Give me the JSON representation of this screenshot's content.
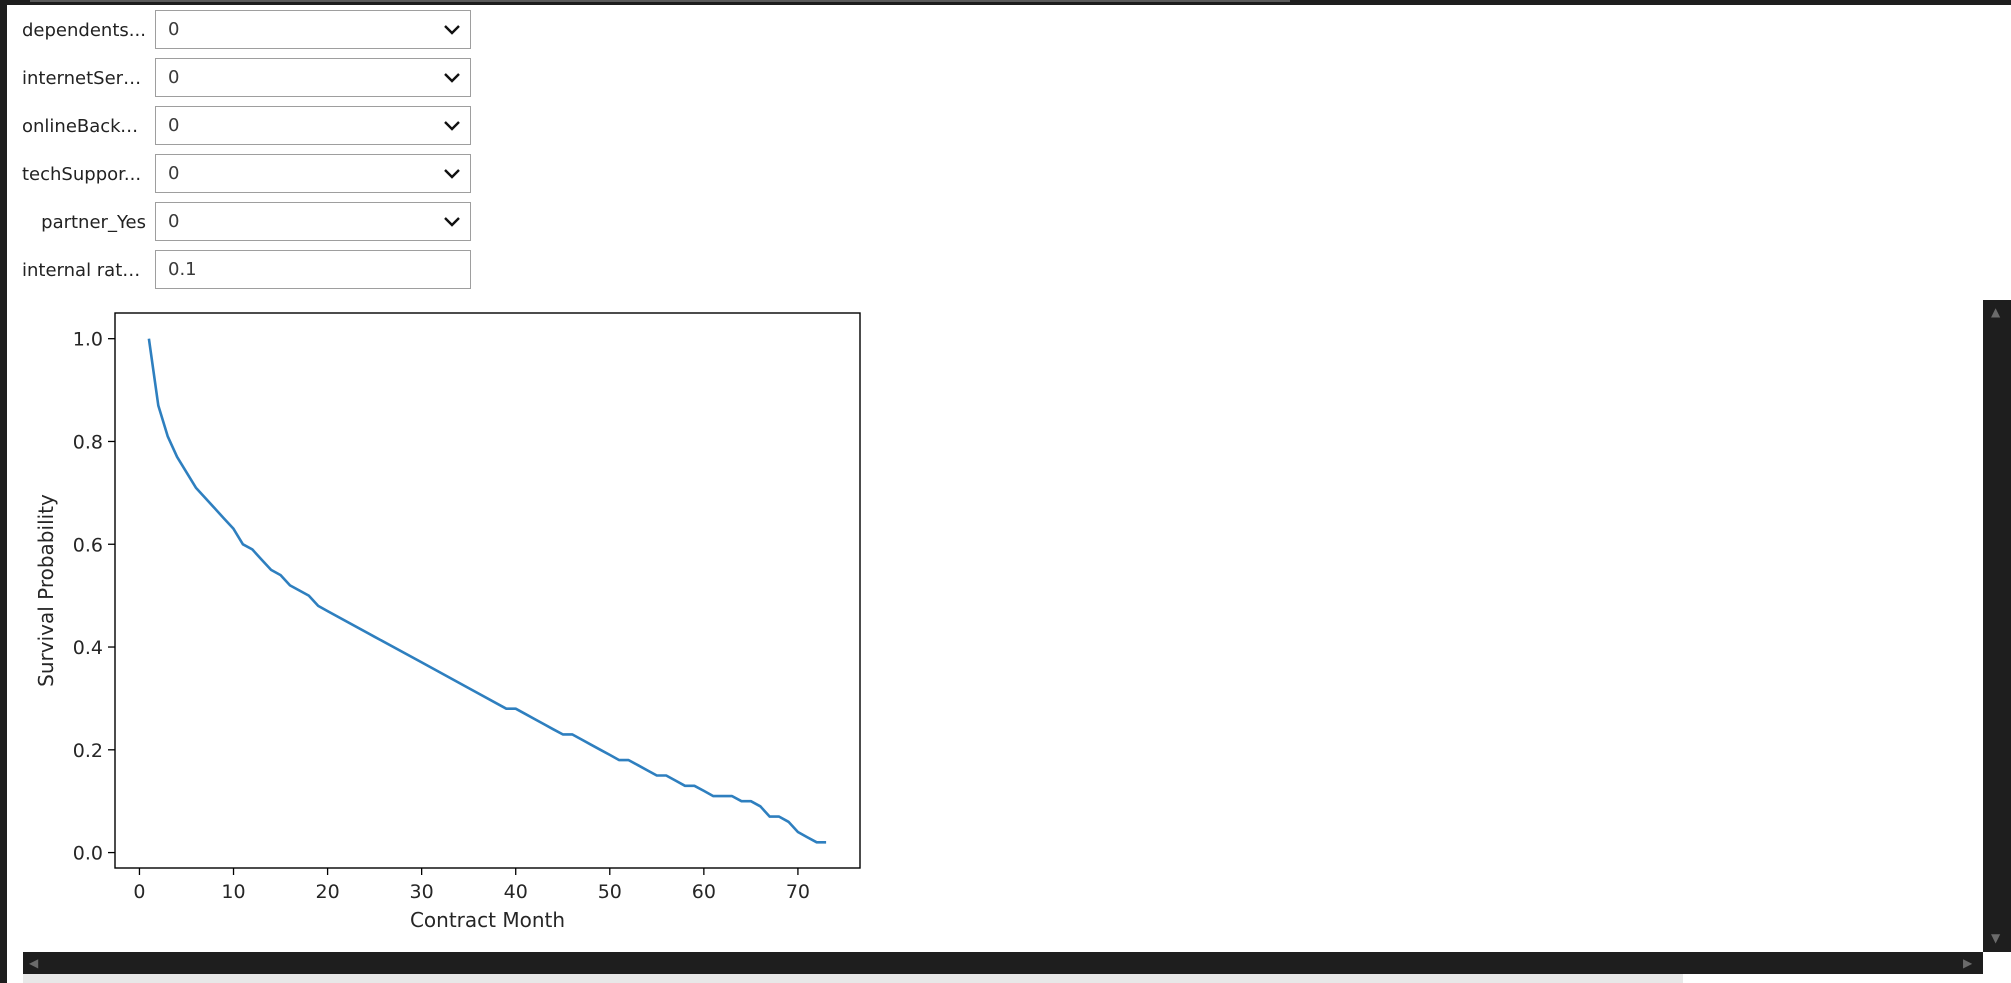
{
  "controls": [
    {
      "label": "dependents...",
      "value": "0",
      "kind": "select"
    },
    {
      "label": "internetServ...",
      "value": "0",
      "kind": "select"
    },
    {
      "label": "onlineBacku...",
      "value": "0",
      "kind": "select"
    },
    {
      "label": "techSuppor...",
      "value": "0",
      "kind": "select"
    },
    {
      "label": "partner_Yes",
      "value": "0",
      "kind": "select"
    },
    {
      "label": "internal rate...",
      "value": "0.1",
      "kind": "text"
    }
  ],
  "icons": {
    "dropdown": "chevron-down-icon",
    "scroll_up": "scroll-up-arrow-icon",
    "scroll_down": "scroll-down-arrow-icon",
    "scroll_left": "scroll-left-arrow-icon",
    "scroll_right": "scroll-right-arrow-icon"
  },
  "chart_data": {
    "type": "line",
    "xlabel": "Contract Month",
    "ylabel": "Survival Probability",
    "xlim": [
      -2.6,
      76.6
    ],
    "ylim": [
      -0.03,
      1.05
    ],
    "xticks": [
      0,
      10,
      20,
      30,
      40,
      50,
      60,
      70
    ],
    "yticks": [
      0.0,
      0.2,
      0.4,
      0.6,
      0.8,
      1.0
    ],
    "ytick_labels": [
      "0.0",
      "0.2",
      "0.4",
      "0.6",
      "0.8",
      "1.0"
    ],
    "line_color": "#2e7fbf",
    "grid": false,
    "series": [
      {
        "x": [
          1,
          2,
          3,
          4,
          5,
          6,
          7,
          8,
          9,
          10,
          11,
          12,
          13,
          14,
          15,
          16,
          17,
          18,
          19,
          20,
          25,
          30,
          35,
          39,
          40,
          41,
          42,
          43,
          44,
          45,
          46,
          47,
          48,
          49,
          50,
          51,
          52,
          53,
          54,
          55,
          56,
          57,
          58,
          59,
          60,
          61,
          62,
          63,
          64,
          65,
          66,
          67,
          68,
          69,
          70,
          71,
          72,
          73
        ],
        "y": [
          1.0,
          0.87,
          0.81,
          0.77,
          0.74,
          0.71,
          0.69,
          0.67,
          0.65,
          0.63,
          0.6,
          0.59,
          0.57,
          0.55,
          0.54,
          0.52,
          0.51,
          0.5,
          0.48,
          0.47,
          0.42,
          0.37,
          0.32,
          0.28,
          0.28,
          0.27,
          0.26,
          0.25,
          0.24,
          0.23,
          0.23,
          0.22,
          0.21,
          0.2,
          0.19,
          0.18,
          0.18,
          0.17,
          0.16,
          0.15,
          0.15,
          0.14,
          0.13,
          0.13,
          0.12,
          0.11,
          0.11,
          0.11,
          0.1,
          0.1,
          0.09,
          0.07,
          0.07,
          0.06,
          0.04,
          0.03,
          0.02,
          0.02
        ]
      }
    ]
  }
}
